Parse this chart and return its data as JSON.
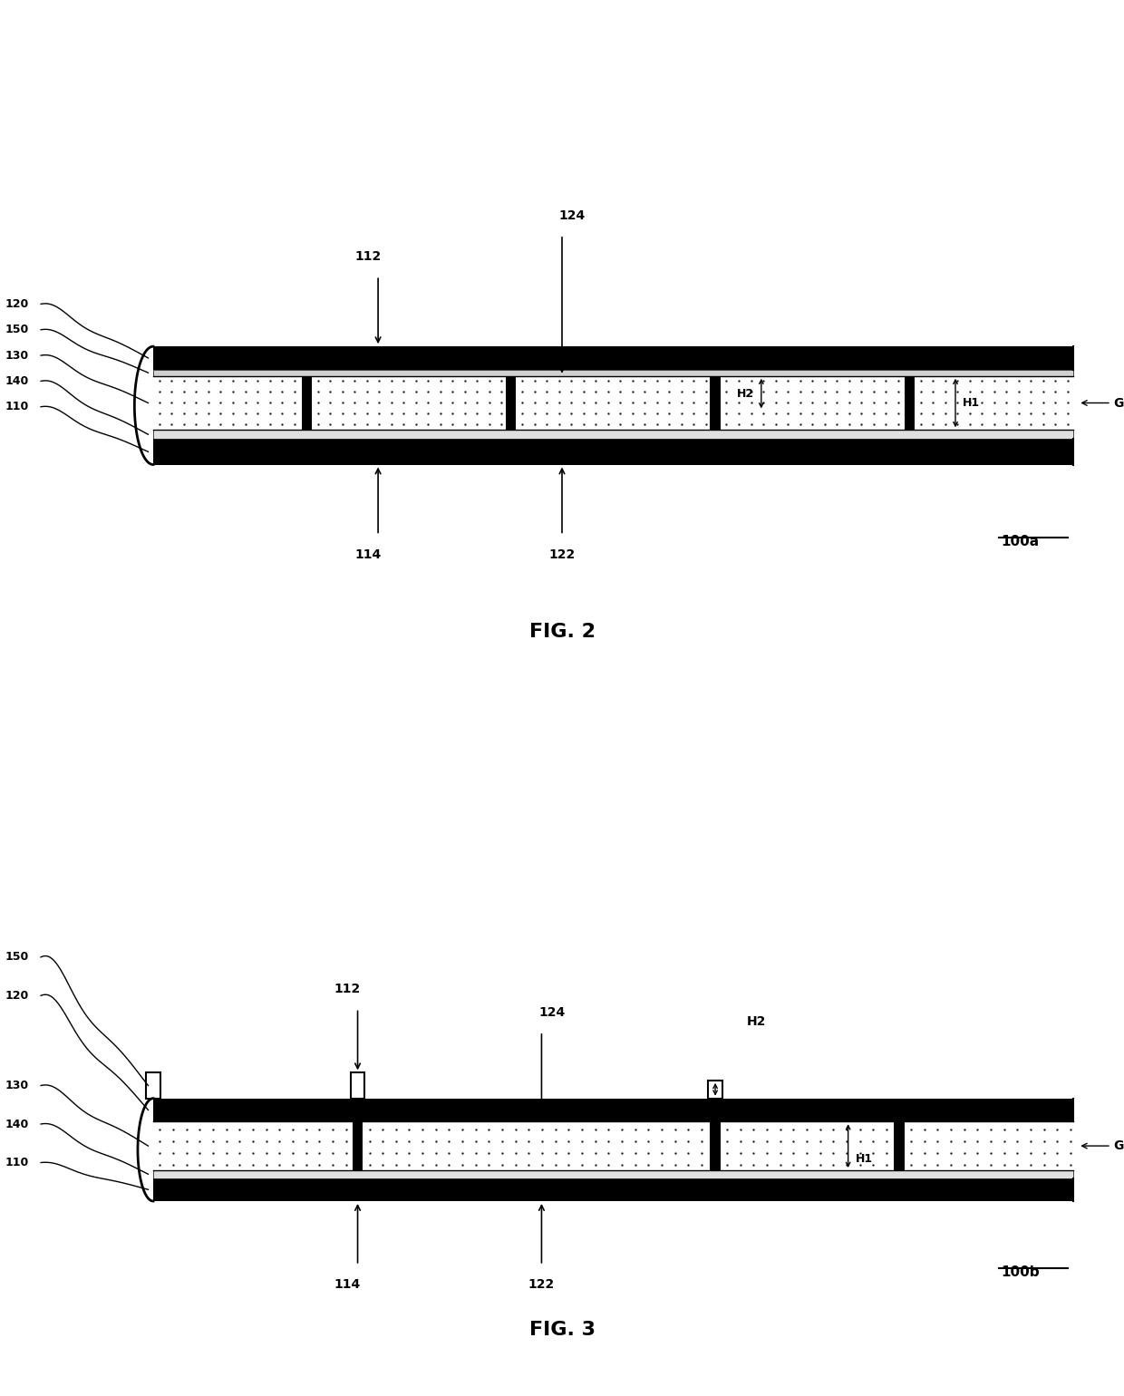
{
  "bg_color": "#ffffff",
  "fig_width": 12.4,
  "fig_height": 15.4,
  "fig2_title": "FIG. 2",
  "fig3_title": "FIG. 3",
  "fig2_label": "100a",
  "fig3_label": "100b"
}
